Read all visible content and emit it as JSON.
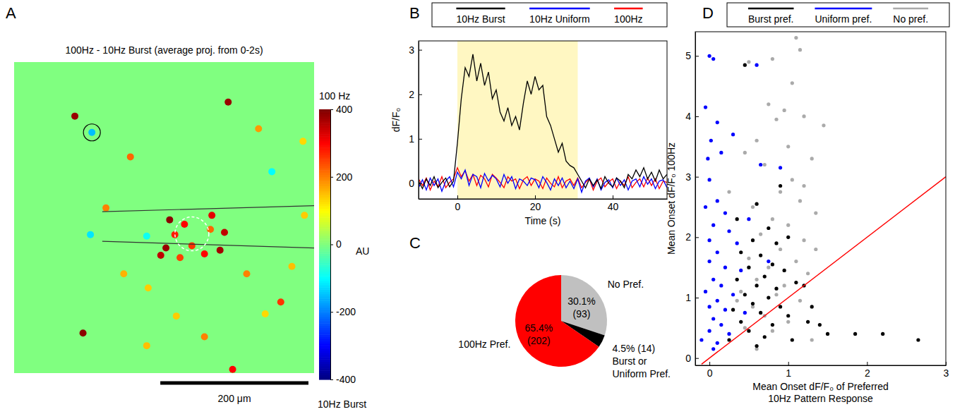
{
  "chart_data": [
    {
      "panel": "A",
      "type": "heatmap",
      "title": "100Hz - 10Hz Burst (average proj. from 0-2s)",
      "xlim": [
        0,
        405
      ],
      "ylim": [
        0,
        420
      ],
      "tick_labels": false,
      "background": 0,
      "cells": {
        "x": [
          82,
          105,
          289,
          330,
          157,
          390,
          124,
          103,
          148,
          181,
          93,
          179,
          257,
          295,
          360,
          375,
          392,
          314,
          339,
          219,
          348,
          179,
          210,
          230,
          267,
          284,
          205,
          240,
          257,
          278,
          224,
          217,
          265,
          198
        ],
        "y": [
          73,
          95,
          54,
          90,
          128,
          107,
          197,
          233,
          286,
          305,
          366,
          383,
          371,
          415,
          324,
          276,
          207,
          286,
          340,
          343,
          148,
          235,
          213,
          219,
          207,
          230,
          251,
          248,
          259,
          254,
          264,
          233,
          226,
          261
        ],
        "values": [
          380,
          -150,
          380,
          180,
          220,
          130,
          200,
          -120,
          160,
          140,
          390,
          150,
          200,
          300,
          260,
          150,
          140,
          200,
          130,
          140,
          -100,
          -90,
          390,
          300,
          320,
          350,
          380,
          260,
          300,
          370,
          250,
          280,
          220,
          350
        ]
      },
      "colorbar": {
        "range": [
          -400,
          400
        ],
        "ticks": [
          400,
          200,
          0,
          -200,
          -400
        ],
        "label": "AU",
        "top_label": "100 Hz",
        "bottom_label": "10Hz Burst"
      },
      "scale_bar": {
        "length": 200,
        "label": "200 μm"
      }
    },
    {
      "panel": "B",
      "type": "line",
      "x": [
        -10,
        -9,
        -8,
        -7,
        -6,
        -5,
        -4,
        -3,
        -2,
        -1,
        0,
        1,
        2,
        3,
        4,
        5,
        6,
        7,
        8,
        9,
        10,
        11,
        12,
        13,
        14,
        15,
        16,
        17,
        18,
        19,
        20,
        21,
        22,
        23,
        24,
        25,
        26,
        27,
        28,
        29,
        30,
        31,
        32,
        33,
        34,
        35,
        36,
        37,
        38,
        39,
        40,
        41,
        42,
        43,
        44,
        45,
        46,
        47,
        48,
        49,
        50,
        51,
        52,
        53,
        54
      ],
      "series": [
        {
          "name": "10Hz Burst",
          "color": "#000000",
          "values": [
            0.05,
            -0.12,
            0.1,
            -0.05,
            0.15,
            -0.1,
            0.02,
            0.12,
            -0.08,
            0.05,
            0.9,
            1.9,
            2.6,
            2.4,
            2.9,
            2.3,
            2.7,
            2.2,
            2.5,
            1.9,
            2.1,
            1.6,
            1.4,
            1.7,
            1.3,
            1.5,
            1.2,
            1.8,
            2.3,
            2.0,
            2.4,
            2.1,
            2.2,
            1.5,
            1.3,
            1.0,
            0.7,
            0.9,
            0.5,
            0.4,
            0.35,
            0.2,
            0.05,
            -0.1,
            0.1,
            -0.05,
            0.08,
            -0.12,
            0.15,
            0.0,
            -0.08,
            0.12,
            0.05,
            -0.1,
            0.2,
            0.1,
            0.3,
            0.15,
            0.35,
            0.1,
            0.25,
            0.05,
            0.3,
            0.1,
            0.2
          ]
        },
        {
          "name": "10Hz Uniform",
          "color": "#0000ff",
          "values": [
            -0.1,
            0.08,
            -0.15,
            0.12,
            -0.05,
            0.1,
            -0.18,
            0.05,
            0.15,
            -0.08,
            0.25,
            0.1,
            0.3,
            -0.05,
            0.2,
            0.15,
            -0.1,
            0.22,
            0.05,
            0.18,
            0.1,
            -0.08,
            0.2,
            0.0,
            0.15,
            -0.12,
            0.1,
            0.05,
            -0.05,
            0.12,
            0.08,
            -0.1,
            0.15,
            0.02,
            -0.15,
            0.1,
            -0.05,
            0.12,
            -0.1,
            0.05,
            -0.12,
            0.1,
            -0.2,
            0.05,
            0.12,
            -0.08,
            0.1,
            -0.15,
            0.02,
            0.08,
            -0.1,
            0.12,
            -0.05,
            0.08,
            -0.15,
            0.05,
            0.1,
            -0.08,
            0.15,
            -0.02,
            0.1,
            -0.12,
            0.05,
            0.08,
            -0.1
          ]
        },
        {
          "name": "100Hz",
          "color": "#ff0000",
          "values": [
            0.1,
            -0.05,
            0.12,
            -0.15,
            0.05,
            -0.08,
            0.15,
            -0.1,
            0.02,
            0.1,
            0.35,
            0.15,
            0.28,
            0.05,
            0.2,
            -0.05,
            0.18,
            0.1,
            -0.08,
            0.2,
            0.12,
            0.02,
            -0.1,
            0.15,
            0.05,
            0.1,
            -0.12,
            0.08,
            0.15,
            -0.05,
            0.1,
            0.05,
            -0.12,
            0.12,
            0.0,
            -0.08,
            0.15,
            -0.1,
            0.05,
            0.1,
            -0.05,
            0.12,
            -0.1,
            0.02,
            0.1,
            -0.15,
            0.05,
            0.12,
            -0.08,
            0.03,
            0.1,
            -0.12,
            0.05,
            -0.05,
            0.15,
            -0.1,
            0.02,
            0.1,
            -0.08,
            0.12,
            -0.05,
            0.1,
            -0.12,
            0.05,
            0.02
          ]
        }
      ],
      "xlim": [
        -10,
        54
      ],
      "ylim": [
        -0.35,
        3.2
      ],
      "xticks": [
        0,
        20,
        40
      ],
      "yticks": [
        0,
        1,
        2,
        3
      ],
      "xlabel": "Time (s)",
      "ylabel": "dF/F₀",
      "legend": "top",
      "highlight": {
        "x": [
          0,
          31
        ],
        "color": "#fff7c2"
      }
    },
    {
      "panel": "C",
      "type": "pie",
      "categories": [
        "No Pref.",
        "Burst or Uniform Pref.",
        "100Hz Pref."
      ],
      "values": [
        30.1,
        4.5,
        65.4
      ],
      "value_labels": [
        "30.1%",
        "4.5%",
        "65.4%"
      ],
      "counts": [
        93,
        14,
        202
      ],
      "count_labels": [
        "(93)",
        "(14)",
        "(202)"
      ],
      "colors": [
        "#c0c0c0",
        "#000000",
        "#ff0000"
      ],
      "data_labels": true
    },
    {
      "panel": "D",
      "type": "scatter",
      "marker": "circle",
      "series": [
        {
          "name": "Burst pref.",
          "color": "#000000",
          "x": [
            0.45,
            0.6,
            0.35,
            0.9,
            0.75,
            0.55,
            0.85,
            1.0,
            0.4,
            0.65,
            0.8,
            0.5,
            0.95,
            0.7,
            0.35,
            0.6,
            0.85,
            1.1,
            0.45,
            0.75,
            0.55,
            0.9,
            0.3,
            0.65,
            1.0,
            0.4,
            0.8,
            0.5,
            0.7,
            0.25,
            0.6,
            1.2,
            1.3,
            1.4,
            1.5,
            1.85,
            2.2,
            2.65,
            1.05,
            1.25
          ],
          "values": [
            4.85,
            2.55,
            2.3,
            2.85,
            2.15,
            1.95,
            1.9,
            2.0,
            1.75,
            1.7,
            1.55,
            1.5,
            1.45,
            1.35,
            1.3,
            1.2,
            1.15,
            1.25,
            1.05,
            1.0,
            0.9,
            0.85,
            0.8,
            0.75,
            0.7,
            0.6,
            0.55,
            0.45,
            0.35,
            0.3,
            0.2,
            1.2,
            0.85,
            0.55,
            0.4,
            0.4,
            0.4,
            0.3,
            0.3,
            0.6
          ]
        },
        {
          "name": "Uniform pref.",
          "color": "#0000ff",
          "x": [
            0.0,
            0.05,
            -0.05,
            0.1,
            0.02,
            0.15,
            -0.02,
            0.3,
            0.0,
            0.1,
            -0.05,
            0.2,
            0.05,
            0.25,
            0.0,
            0.35,
            0.1,
            0.0,
            0.2,
            0.4,
            0.05,
            0.15,
            -0.05,
            0.3,
            0.1,
            0.0,
            0.2,
            0.45,
            0.05,
            0.15,
            0.0,
            0.25,
            -0.1,
            0.1,
            0.05,
            0.6,
            0.65,
            0.9,
            0.5,
            0.75
          ],
          "values": [
            5.0,
            4.95,
            4.15,
            3.9,
            3.6,
            3.4,
            3.3,
            3.7,
            2.95,
            2.6,
            2.5,
            2.4,
            2.2,
            2.1,
            1.95,
            1.9,
            1.75,
            1.6,
            1.5,
            1.45,
            1.3,
            1.2,
            1.1,
            1.05,
            0.95,
            0.85,
            0.8,
            0.75,
            0.65,
            0.55,
            0.45,
            0.4,
            0.3,
            0.25,
            0.15,
            4.85,
            3.2,
            3.15,
            2.3,
            1.6
          ]
        },
        {
          "name": "No pref.",
          "color": "#aaaaaa",
          "x": [
            0.5,
            0.8,
            1.1,
            1.15,
            1.05,
            0.75,
            0.95,
            1.2,
            0.85,
            1.45,
            0.6,
            1.0,
            0.45,
            1.3,
            0.7,
            1.05,
            0.9,
            1.15,
            0.55,
            1.35,
            0.8,
            1.0,
            0.65,
            1.2,
            0.9,
            0.5,
            1.1,
            0.75,
            1.25,
            0.6,
            0.95,
            0.4,
            0.85,
            1.15,
            0.55,
            0.7,
            1.0,
            0.45,
            0.8,
            1.3,
            0.35,
            0.6,
            1.35,
            1.2,
            0.25
          ],
          "values": [
            4.9,
            4.95,
            5.3,
            5.1,
            4.55,
            4.2,
            4.1,
            4.0,
            3.95,
            3.85,
            3.6,
            3.5,
            3.4,
            3.3,
            3.2,
            2.95,
            2.75,
            2.6,
            2.5,
            2.4,
            2.3,
            2.2,
            2.05,
            1.95,
            1.8,
            1.65,
            1.6,
            1.5,
            1.4,
            1.3,
            1.2,
            1.1,
            1.05,
            0.95,
            0.85,
            0.7,
            0.6,
            0.5,
            0.45,
            0.3,
            0.95,
            0.15,
            1.8,
            2.85,
            2.75
          ]
        }
      ],
      "xlim": [
        -0.18,
        3
      ],
      "ylim": [
        -0.12,
        5.4
      ],
      "xticks": [
        0,
        1,
        2,
        3
      ],
      "yticks": [
        0,
        1,
        2,
        3,
        4,
        5
      ],
      "xlabel": "Mean Onset dF/F₀ of Preferred 10Hz Pattern Response",
      "ylabel": "Mean Onset dF/F₀ 100Hz",
      "legend": "top",
      "reference_line": {
        "x": [
          -0.1,
          3
        ],
        "y": [
          -0.1,
          3
        ],
        "color": "#ff0000"
      }
    }
  ]
}
